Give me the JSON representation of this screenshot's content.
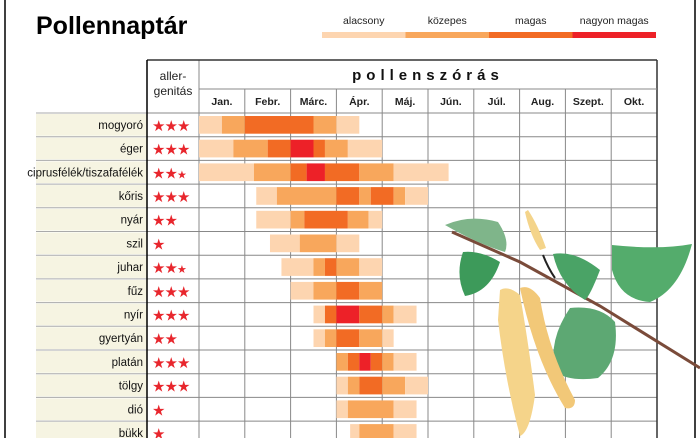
{
  "chart_data": {
    "type": "table",
    "title": "Pollennaptár",
    "legend": {
      "placement": "top-right",
      "levels": [
        {
          "key": "low",
          "label": "alacsony",
          "color": "#fdd5b0"
        },
        {
          "key": "mid",
          "label": "közepes",
          "color": "#f8a75c"
        },
        {
          "key": "high",
          "label": "magas",
          "color": "#f26b24"
        },
        {
          "key": "very",
          "label": "nagyon magas",
          "color": "#ed2128"
        }
      ]
    },
    "header": {
      "allergen_label_1": "aller-",
      "allergen_label_2": "genitás",
      "pollen_label": "pollenszórás"
    },
    "months": [
      "Jan.",
      "Febr.",
      "Márc.",
      "Ápr.",
      "Máj.",
      "Jún.",
      "Júl.",
      "Aug.",
      "Szept.",
      "Okt."
    ],
    "star_color": "#e8262d",
    "plants": [
      {
        "name": "mogyoró",
        "allergenicity": 3,
        "segments": [
          [
            "low",
            0,
            0.5
          ],
          [
            "mid",
            0.5,
            1
          ],
          [
            "high",
            1,
            2.5
          ],
          [
            "mid",
            2.5,
            3
          ],
          [
            "low",
            3,
            3.5
          ]
        ]
      },
      {
        "name": "éger",
        "allergenicity": 3,
        "segments": [
          [
            "low",
            0,
            0.75
          ],
          [
            "mid",
            0.75,
            1.5
          ],
          [
            "high",
            1.5,
            2
          ],
          [
            "very",
            2,
            2.5
          ],
          [
            "high",
            2.5,
            2.75
          ],
          [
            "mid",
            2.75,
            3.25
          ],
          [
            "low",
            3.25,
            4
          ]
        ]
      },
      {
        "name": "ciprusfélék/tiszafafélék",
        "allergenicity": 2.5,
        "segments": [
          [
            "low",
            0,
            1.2
          ],
          [
            "mid",
            1.2,
            2
          ],
          [
            "high",
            2,
            2.35
          ],
          [
            "very",
            2.35,
            2.75
          ],
          [
            "high",
            2.75,
            3.5
          ],
          [
            "mid",
            3.5,
            4.25
          ],
          [
            "low",
            4.25,
            5.45
          ]
        ]
      },
      {
        "name": "kőris",
        "allergenicity": 3,
        "segments": [
          [
            "low",
            1.25,
            1.7
          ],
          [
            "mid",
            1.7,
            3
          ],
          [
            "high",
            3,
            3.5
          ],
          [
            "mid",
            3.5,
            3.75
          ],
          [
            "high",
            3.75,
            4.25
          ],
          [
            "mid",
            4.25,
            4.5
          ],
          [
            "low",
            4.5,
            5
          ]
        ]
      },
      {
        "name": "nyár",
        "allergenicity": 2,
        "segments": [
          [
            "low",
            1.25,
            2
          ],
          [
            "mid",
            2,
            2.3
          ],
          [
            "high",
            2.3,
            3.25
          ],
          [
            "mid",
            3.25,
            3.7
          ],
          [
            "low",
            3.7,
            4
          ]
        ]
      },
      {
        "name": "szil",
        "allergenicity": 1,
        "segments": [
          [
            "low",
            1.55,
            2.2
          ],
          [
            "mid",
            2.2,
            3
          ],
          [
            "low",
            3,
            3.5
          ]
        ]
      },
      {
        "name": "juhar",
        "allergenicity": 2.5,
        "segments": [
          [
            "low",
            1.8,
            2.5
          ],
          [
            "mid",
            2.5,
            2.75
          ],
          [
            "high",
            2.75,
            3
          ],
          [
            "mid",
            3,
            3.5
          ],
          [
            "low",
            3.5,
            4
          ]
        ]
      },
      {
        "name": "fűz",
        "allergenicity": 3,
        "segments": [
          [
            "low",
            2,
            2.5
          ],
          [
            "mid",
            2.5,
            3
          ],
          [
            "high",
            3,
            3.5
          ],
          [
            "mid",
            3.5,
            4
          ]
        ]
      },
      {
        "name": "nyír",
        "allergenicity": 3,
        "segments": [
          [
            "low",
            2.5,
            2.75
          ],
          [
            "high",
            2.75,
            3
          ],
          [
            "very",
            3,
            3.5
          ],
          [
            "high",
            3.5,
            4
          ],
          [
            "mid",
            4,
            4.25
          ],
          [
            "low",
            4.25,
            4.75
          ]
        ]
      },
      {
        "name": "gyertyán",
        "allergenicity": 2,
        "segments": [
          [
            "low",
            2.5,
            2.75
          ],
          [
            "mid",
            2.75,
            3
          ],
          [
            "high",
            3,
            3.5
          ],
          [
            "mid",
            3.5,
            4
          ],
          [
            "low",
            4,
            4.25
          ]
        ]
      },
      {
        "name": "platán",
        "allergenicity": 3,
        "segments": [
          [
            "mid",
            3,
            3.25
          ],
          [
            "high",
            3.25,
            3.5
          ],
          [
            "very",
            3.5,
            3.75
          ],
          [
            "high",
            3.75,
            4
          ],
          [
            "mid",
            4,
            4.25
          ],
          [
            "low",
            4.25,
            4.75
          ]
        ]
      },
      {
        "name": "tölgy",
        "allergenicity": 3,
        "segments": [
          [
            "low",
            3,
            3.25
          ],
          [
            "mid",
            3.25,
            3.5
          ],
          [
            "high",
            3.5,
            4
          ],
          [
            "mid",
            4,
            4.5
          ],
          [
            "low",
            4.5,
            5
          ]
        ]
      },
      {
        "name": "dió",
        "allergenicity": 1,
        "segments": [
          [
            "low",
            3,
            3.25
          ],
          [
            "mid",
            3.25,
            4.25
          ],
          [
            "low",
            4.25,
            4.75
          ]
        ]
      },
      {
        "name": "bükk",
        "allergenicity": 1,
        "segments": [
          [
            "low",
            3.3,
            3.5
          ],
          [
            "mid",
            3.5,
            4.25
          ],
          [
            "low",
            4.25,
            4.75
          ]
        ]
      }
    ]
  }
}
